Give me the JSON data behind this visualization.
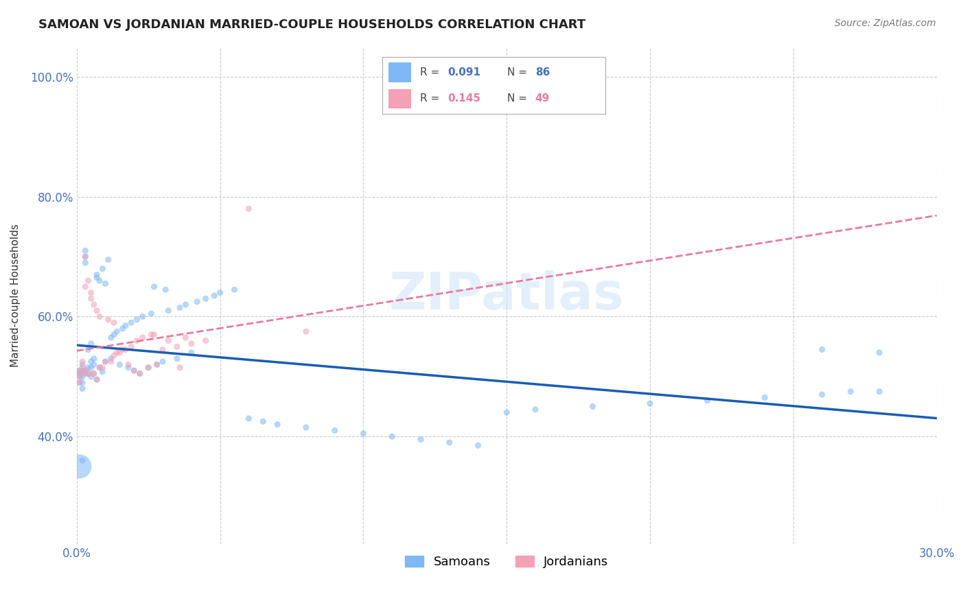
{
  "title": "SAMOAN VS JORDANIAN MARRIED-COUPLE HOUSEHOLDS CORRELATION CHART",
  "source": "Source: ZipAtlas.com",
  "ylabel": "Married-couple Households",
  "x_min": 0.0,
  "x_max": 0.3,
  "samoans_color": "#7EB8F7",
  "jordanians_color": "#F4A0B5",
  "samoan_line_color": "#1A5CB5",
  "jordanian_line_color": "#E87B9E",
  "background_color": "#ffffff",
  "grid_color": "#cccccc",
  "samoans_x": [
    0.001,
    0.001,
    0.001,
    0.001,
    0.002,
    0.002,
    0.002,
    0.002,
    0.002,
    0.003,
    0.003,
    0.003,
    0.003,
    0.003,
    0.004,
    0.004,
    0.004,
    0.005,
    0.005,
    0.005,
    0.005,
    0.006,
    0.006,
    0.006,
    0.007,
    0.007,
    0.007,
    0.008,
    0.008,
    0.009,
    0.009,
    0.01,
    0.01,
    0.011,
    0.012,
    0.012,
    0.013,
    0.014,
    0.015,
    0.016,
    0.017,
    0.018,
    0.019,
    0.02,
    0.021,
    0.022,
    0.023,
    0.025,
    0.026,
    0.027,
    0.028,
    0.03,
    0.031,
    0.032,
    0.035,
    0.036,
    0.038,
    0.04,
    0.042,
    0.045,
    0.048,
    0.05,
    0.055,
    0.06,
    0.065,
    0.07,
    0.08,
    0.09,
    0.1,
    0.11,
    0.12,
    0.13,
    0.14,
    0.15,
    0.16,
    0.18,
    0.2,
    0.22,
    0.24,
    0.26,
    0.27,
    0.28,
    0.001,
    0.002,
    0.26,
    0.28
  ],
  "samoans_y": [
    0.5,
    0.51,
    0.49,
    0.505,
    0.52,
    0.48,
    0.5,
    0.51,
    0.49,
    0.51,
    0.7,
    0.71,
    0.69,
    0.505,
    0.505,
    0.515,
    0.545,
    0.5,
    0.515,
    0.525,
    0.555,
    0.505,
    0.52,
    0.53,
    0.495,
    0.67,
    0.665,
    0.515,
    0.66,
    0.508,
    0.68,
    0.525,
    0.655,
    0.695,
    0.53,
    0.565,
    0.57,
    0.575,
    0.52,
    0.58,
    0.585,
    0.515,
    0.59,
    0.51,
    0.595,
    0.505,
    0.6,
    0.515,
    0.605,
    0.65,
    0.52,
    0.525,
    0.645,
    0.61,
    0.53,
    0.615,
    0.62,
    0.54,
    0.625,
    0.63,
    0.635,
    0.64,
    0.645,
    0.43,
    0.425,
    0.42,
    0.415,
    0.41,
    0.405,
    0.4,
    0.395,
    0.39,
    0.385,
    0.44,
    0.445,
    0.45,
    0.455,
    0.46,
    0.465,
    0.47,
    0.475,
    0.475,
    0.35,
    0.36,
    0.545,
    0.54
  ],
  "samoans_size": [
    35,
    35,
    35,
    35,
    35,
    35,
    35,
    35,
    35,
    35,
    35,
    35,
    35,
    35,
    35,
    35,
    35,
    35,
    35,
    35,
    35,
    35,
    35,
    35,
    35,
    35,
    35,
    35,
    35,
    35,
    35,
    35,
    35,
    35,
    35,
    35,
    35,
    35,
    35,
    35,
    35,
    35,
    35,
    35,
    35,
    35,
    35,
    35,
    35,
    35,
    35,
    35,
    35,
    35,
    35,
    35,
    35,
    35,
    35,
    35,
    35,
    35,
    35,
    35,
    35,
    35,
    35,
    35,
    35,
    35,
    35,
    35,
    35,
    35,
    35,
    35,
    35,
    35,
    35,
    35,
    35,
    35,
    600,
    35,
    35,
    35
  ],
  "jordanians_x": [
    0.001,
    0.001,
    0.001,
    0.002,
    0.002,
    0.002,
    0.003,
    0.003,
    0.003,
    0.004,
    0.004,
    0.005,
    0.005,
    0.005,
    0.006,
    0.006,
    0.007,
    0.007,
    0.008,
    0.008,
    0.009,
    0.01,
    0.011,
    0.012,
    0.013,
    0.013,
    0.014,
    0.015,
    0.016,
    0.017,
    0.018,
    0.019,
    0.02,
    0.021,
    0.022,
    0.023,
    0.025,
    0.026,
    0.027,
    0.028,
    0.03,
    0.032,
    0.035,
    0.036,
    0.038,
    0.04,
    0.045,
    0.06,
    0.08
  ],
  "jordanians_y": [
    0.5,
    0.51,
    0.49,
    0.505,
    0.515,
    0.525,
    0.7,
    0.51,
    0.65,
    0.505,
    0.66,
    0.64,
    0.505,
    0.63,
    0.505,
    0.62,
    0.495,
    0.61,
    0.515,
    0.6,
    0.515,
    0.525,
    0.595,
    0.525,
    0.59,
    0.535,
    0.54,
    0.54,
    0.545,
    0.545,
    0.52,
    0.55,
    0.51,
    0.56,
    0.505,
    0.565,
    0.515,
    0.57,
    0.57,
    0.52,
    0.545,
    0.56,
    0.55,
    0.515,
    0.565,
    0.555,
    0.56,
    0.78,
    0.575
  ],
  "jordanians_size": [
    35,
    35,
    35,
    35,
    35,
    35,
    35,
    35,
    35,
    35,
    35,
    35,
    35,
    35,
    35,
    35,
    35,
    35,
    35,
    35,
    35,
    35,
    35,
    35,
    35,
    35,
    35,
    35,
    35,
    35,
    35,
    35,
    35,
    35,
    35,
    35,
    35,
    35,
    35,
    35,
    35,
    35,
    35,
    35,
    35,
    35,
    35,
    35,
    35
  ]
}
